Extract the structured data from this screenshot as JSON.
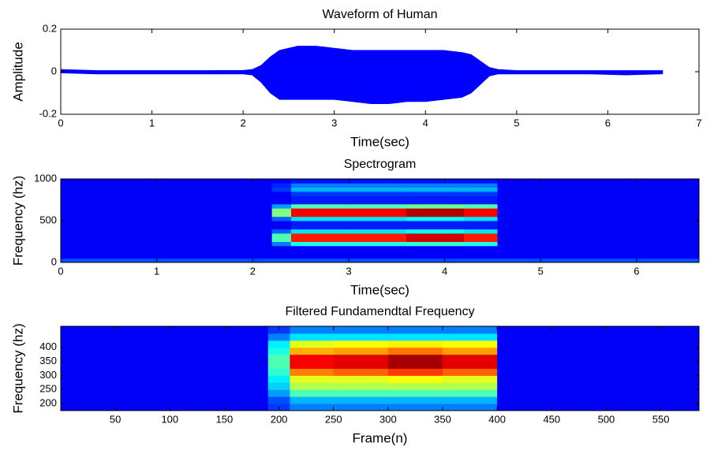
{
  "chart_data": [
    {
      "type": "area",
      "title": "Waveform of Human",
      "xlabel": "Time(sec)",
      "ylabel": "Amplitude",
      "x": [
        0,
        0.4,
        0.8,
        1.2,
        1.6,
        2.0,
        2.1,
        2.2,
        2.3,
        2.4,
        2.6,
        2.8,
        3.0,
        3.2,
        3.4,
        3.6,
        3.8,
        4.0,
        4.2,
        4.4,
        4.5,
        4.6,
        4.7,
        4.8,
        5.0,
        5.4,
        5.8,
        6.2,
        6.6
      ],
      "series": [
        {
          "color": "#0000ff",
          "values": [
            0.01,
            0.005,
            0.005,
            0.005,
            0.005,
            0.006,
            0.01,
            0.03,
            0.07,
            0.1,
            0.12,
            0.12,
            0.11,
            0.1,
            0.1,
            0.1,
            0.1,
            0.1,
            0.1,
            0.09,
            0.08,
            0.05,
            0.02,
            0.01,
            0.005,
            0.005,
            0.005,
            0.005,
            0.005
          ]
        },
        {
          "color": "#0000ff",
          "values": [
            -0.005,
            -0.01,
            -0.01,
            -0.01,
            -0.01,
            -0.01,
            -0.015,
            -0.05,
            -0.1,
            -0.13,
            -0.13,
            -0.13,
            -0.13,
            -0.14,
            -0.15,
            -0.15,
            -0.14,
            -0.14,
            -0.13,
            -0.12,
            -0.1,
            -0.06,
            -0.02,
            -0.01,
            -0.01,
            -0.01,
            -0.01,
            -0.015,
            -0.01
          ]
        }
      ],
      "xlim": [
        0,
        7
      ],
      "xticks": [
        0,
        1,
        2,
        3,
        4,
        5,
        6,
        7
      ],
      "ylim": [
        -0.2,
        0.2
      ],
      "yticks": [
        -0.2,
        0,
        0.2
      ]
    },
    {
      "type": "heatmap",
      "title": "Spectrogram",
      "xlabel": "Time(sec)",
      "ylabel": "Frequency (hz)",
      "xbins": [
        0,
        2.2,
        2.4,
        3.0,
        3.6,
        4.2,
        4.55,
        6.65
      ],
      "ybins": [
        0,
        50,
        100,
        150,
        200,
        250,
        300,
        350,
        400,
        450,
        500,
        550,
        600,
        650,
        700,
        750,
        800,
        850,
        900,
        950,
        1000
      ],
      "z": [
        [
          0.2,
          0.2,
          0.2,
          0.2,
          0.2,
          0.2,
          0.2
        ],
        [
          0.12,
          0.12,
          0.12,
          0.12,
          0.12,
          0.12,
          0.12
        ],
        [
          0.12,
          0.12,
          0.12,
          0.12,
          0.12,
          0.12,
          0.12
        ],
        [
          0.12,
          0.12,
          0.12,
          0.12,
          0.12,
          0.12,
          0.12
        ],
        [
          0.12,
          0.25,
          0.4,
          0.4,
          0.42,
          0.4,
          0.12
        ],
        [
          0.12,
          0.45,
          0.85,
          0.85,
          0.92,
          0.85,
          0.12
        ],
        [
          0.12,
          0.45,
          0.85,
          0.85,
          0.92,
          0.85,
          0.12
        ],
        [
          0.12,
          0.22,
          0.35,
          0.35,
          0.38,
          0.35,
          0.12
        ],
        [
          0.12,
          0.12,
          0.15,
          0.15,
          0.15,
          0.15,
          0.12
        ],
        [
          0.12,
          0.12,
          0.15,
          0.15,
          0.15,
          0.15,
          0.12
        ],
        [
          0.12,
          0.22,
          0.35,
          0.35,
          0.38,
          0.35,
          0.12
        ],
        [
          0.12,
          0.5,
          0.88,
          0.88,
          0.95,
          0.88,
          0.12
        ],
        [
          0.12,
          0.5,
          0.88,
          0.88,
          0.95,
          0.88,
          0.12
        ],
        [
          0.12,
          0.28,
          0.45,
          0.45,
          0.48,
          0.45,
          0.12
        ],
        [
          0.12,
          0.12,
          0.15,
          0.15,
          0.15,
          0.15,
          0.12
        ],
        [
          0.12,
          0.12,
          0.15,
          0.15,
          0.15,
          0.15,
          0.12
        ],
        [
          0.12,
          0.12,
          0.18,
          0.18,
          0.18,
          0.18,
          0.12
        ],
        [
          0.12,
          0.18,
          0.3,
          0.3,
          0.3,
          0.3,
          0.12
        ],
        [
          0.12,
          0.16,
          0.25,
          0.25,
          0.25,
          0.25,
          0.12
        ],
        [
          0.12,
          0.12,
          0.14,
          0.14,
          0.14,
          0.14,
          0.12
        ]
      ],
      "xlim": [
        0,
        6.65
      ],
      "xticks": [
        0,
        1,
        2,
        3,
        4,
        5,
        6
      ],
      "ylim": [
        0,
        1000
      ],
      "yticks": [
        0,
        500,
        1000
      ]
    },
    {
      "type": "heatmap",
      "title": "Filtered Fundamendtal Frequency",
      "xlabel": "Frame(n)",
      "ylabel": "Frequency (hz)",
      "xbins": [
        0,
        190,
        210,
        250,
        300,
        350,
        400,
        585
      ],
      "ybins": [
        175,
        200,
        225,
        250,
        275,
        300,
        325,
        350,
        375,
        400,
        425,
        450,
        475
      ],
      "z": [
        [
          0.12,
          0.18,
          0.25,
          0.25,
          0.25,
          0.25,
          0.12
        ],
        [
          0.12,
          0.2,
          0.3,
          0.3,
          0.3,
          0.3,
          0.12
        ],
        [
          0.12,
          0.28,
          0.45,
          0.45,
          0.45,
          0.45,
          0.12
        ],
        [
          0.12,
          0.33,
          0.55,
          0.55,
          0.55,
          0.55,
          0.12
        ],
        [
          0.12,
          0.36,
          0.6,
          0.6,
          0.62,
          0.6,
          0.12
        ],
        [
          0.12,
          0.42,
          0.75,
          0.78,
          0.82,
          0.78,
          0.12
        ],
        [
          0.12,
          0.45,
          0.88,
          0.9,
          0.96,
          0.9,
          0.12
        ],
        [
          0.12,
          0.45,
          0.88,
          0.9,
          0.96,
          0.9,
          0.12
        ],
        [
          0.12,
          0.4,
          0.7,
          0.72,
          0.76,
          0.72,
          0.12
        ],
        [
          0.12,
          0.36,
          0.6,
          0.62,
          0.64,
          0.62,
          0.12
        ],
        [
          0.12,
          0.25,
          0.35,
          0.35,
          0.35,
          0.35,
          0.12
        ],
        [
          0.12,
          0.18,
          0.25,
          0.25,
          0.25,
          0.25,
          0.12
        ]
      ],
      "xlim": [
        0,
        585
      ],
      "xticks": [
        50,
        100,
        150,
        200,
        250,
        300,
        350,
        400,
        450,
        500,
        550
      ],
      "ylim": [
        175,
        475
      ],
      "yticks": [
        200,
        250,
        300,
        350,
        400
      ]
    }
  ]
}
